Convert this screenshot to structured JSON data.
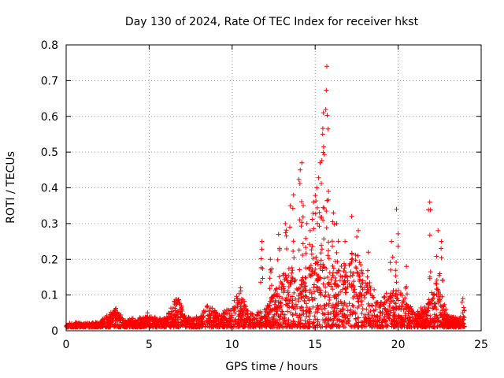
{
  "chart_data": {
    "type": "scatter",
    "title": "Day 130 of 2024, Rate Of TEC Index for receiver hkst",
    "xlabel": "GPS time / hours",
    "ylabel": "ROTI / TECUs",
    "xlim": [
      0,
      25
    ],
    "ylim": [
      0,
      0.8
    ],
    "x_ticks": [
      "0",
      "5",
      "10",
      "15",
      "20",
      "25"
    ],
    "y_ticks": [
      "0",
      "0.1",
      "0.2",
      "0.3",
      "0.4",
      "0.5",
      "0.6",
      "0.7",
      "0.8"
    ],
    "grid": true,
    "marker": "+",
    "color": "#ff0000",
    "series": [
      {
        "name": "ROTI",
        "baseline_envelope": [
          [
            0.0,
            0.02
          ],
          [
            0.5,
            0.025
          ],
          [
            1.0,
            0.02
          ],
          [
            2.0,
            0.025
          ],
          [
            3.0,
            0.065
          ],
          [
            3.5,
            0.03
          ],
          [
            4.0,
            0.035
          ],
          [
            5.0,
            0.04
          ],
          [
            6.0,
            0.035
          ],
          [
            6.7,
            0.1
          ],
          [
            7.2,
            0.04
          ],
          [
            8.0,
            0.04
          ],
          [
            8.6,
            0.08
          ],
          [
            9.2,
            0.045
          ],
          [
            10.0,
            0.07
          ],
          [
            10.4,
            0.12
          ],
          [
            11.0,
            0.05
          ],
          [
            12.0,
            0.06
          ],
          [
            12.8,
            0.13
          ],
          [
            13.2,
            0.17
          ],
          [
            14.0,
            0.14
          ],
          [
            15.0,
            0.2
          ],
          [
            15.5,
            0.2
          ],
          [
            16.0,
            0.18
          ],
          [
            17.0,
            0.2
          ],
          [
            17.5,
            0.22
          ],
          [
            18.0,
            0.15
          ],
          [
            19.0,
            0.1
          ],
          [
            20.0,
            0.12
          ],
          [
            21.0,
            0.05
          ],
          [
            21.8,
            0.08
          ],
          [
            22.3,
            0.16
          ],
          [
            23.0,
            0.04
          ],
          [
            24.0,
            0.04
          ]
        ],
        "peaks": [
          [
            4.9,
            0.05
          ],
          [
            10.5,
            0.12
          ],
          [
            11.8,
            0.25
          ],
          [
            12.3,
            0.2
          ],
          [
            12.8,
            0.27
          ],
          [
            13.2,
            0.3
          ],
          [
            13.5,
            0.35
          ],
          [
            13.7,
            0.38
          ],
          [
            14.1,
            0.45
          ],
          [
            14.2,
            0.47
          ],
          [
            14.5,
            0.3
          ],
          [
            14.7,
            0.28
          ],
          [
            14.9,
            0.36
          ],
          [
            15.1,
            0.4
          ],
          [
            15.3,
            0.47
          ],
          [
            15.45,
            0.55
          ],
          [
            15.5,
            0.61
          ],
          [
            15.7,
            0.74
          ],
          [
            15.8,
            0.39
          ],
          [
            16.1,
            0.33
          ],
          [
            16.3,
            0.3
          ],
          [
            16.8,
            0.25
          ],
          [
            17.2,
            0.32
          ],
          [
            17.6,
            0.28
          ],
          [
            18.2,
            0.22
          ],
          [
            19.6,
            0.25
          ],
          [
            19.9,
            0.34
          ],
          [
            20.5,
            0.18
          ],
          [
            21.9,
            0.36
          ],
          [
            22.4,
            0.28
          ],
          [
            22.6,
            0.25
          ],
          [
            23.9,
            0.09
          ]
        ]
      }
    ]
  }
}
